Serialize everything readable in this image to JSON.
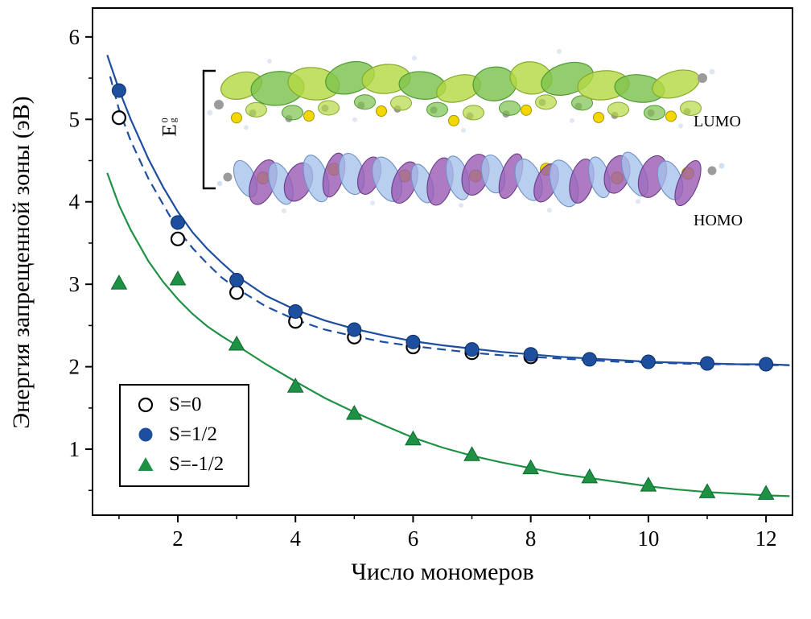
{
  "chart_data": {
    "type": "scatter",
    "title": "",
    "xlabel": "Число мономеров",
    "ylabel": "Энергия запрещенной зоны (эВ)",
    "xlim": [
      0.55,
      12.45
    ],
    "ylim": [
      0.2,
      6.35
    ],
    "xticks_major": [
      2,
      4,
      6,
      8,
      10,
      12
    ],
    "xticks_minor": [
      1,
      3,
      5,
      7,
      9,
      11
    ],
    "yticks_major": [
      1,
      2,
      3,
      4,
      5,
      6
    ],
    "yticks_minor": [
      0.5,
      1.5,
      2.5,
      3.5,
      4.5,
      5.5
    ],
    "grid": false,
    "legend_position": "lower-left",
    "series": [
      {
        "name": "S0",
        "label": "S=0",
        "marker": "circle-open",
        "color": "#000000",
        "line": "dashed",
        "line_color": "#1d4f9e",
        "x": [
          1,
          2,
          3,
          4,
          5,
          6,
          7,
          8
        ],
        "y": [
          5.02,
          3.55,
          2.9,
          2.55,
          2.36,
          2.24,
          2.17,
          2.12
        ],
        "fit": [
          [
            0.85,
            5.52
          ],
          [
            1,
            5.12
          ],
          [
            1.2,
            4.74
          ],
          [
            1.5,
            4.28
          ],
          [
            1.75,
            3.97
          ],
          [
            2,
            3.66
          ],
          [
            2.25,
            3.44
          ],
          [
            2.5,
            3.25
          ],
          [
            2.75,
            3.08
          ],
          [
            3,
            2.95
          ],
          [
            3.5,
            2.73
          ],
          [
            4,
            2.57
          ],
          [
            4.5,
            2.45
          ],
          [
            5,
            2.37
          ],
          [
            5.5,
            2.3
          ],
          [
            6,
            2.25
          ],
          [
            6.5,
            2.21
          ],
          [
            7,
            2.17
          ],
          [
            7.5,
            2.14
          ],
          [
            8,
            2.12
          ],
          [
            8.5,
            2.1
          ],
          [
            9,
            2.08
          ],
          [
            9.5,
            2.06
          ],
          [
            10,
            2.05
          ],
          [
            10.5,
            2.04
          ],
          [
            11,
            2.03
          ],
          [
            11.5,
            2.03
          ],
          [
            12,
            2.02
          ],
          [
            12.4,
            2.02
          ]
        ]
      },
      {
        "name": "S12",
        "label": "S=1/2",
        "marker": "circle-filled",
        "color": "#1d4f9e",
        "line": "solid",
        "line_color": "#1d4f9e",
        "x": [
          1,
          2,
          3,
          4,
          5,
          6,
          7,
          8,
          9,
          10,
          11,
          12
        ],
        "y": [
          5.35,
          3.75,
          3.05,
          2.67,
          2.45,
          2.3,
          2.21,
          2.15,
          2.09,
          2.06,
          2.04,
          2.03
        ],
        "fit": [
          [
            0.8,
            5.78
          ],
          [
            1,
            5.36
          ],
          [
            1.2,
            5.0
          ],
          [
            1.5,
            4.52
          ],
          [
            1.75,
            4.18
          ],
          [
            2,
            3.88
          ],
          [
            2.25,
            3.63
          ],
          [
            2.5,
            3.43
          ],
          [
            2.75,
            3.26
          ],
          [
            3,
            3.1
          ],
          [
            3.5,
            2.86
          ],
          [
            4,
            2.69
          ],
          [
            4.5,
            2.56
          ],
          [
            5,
            2.46
          ],
          [
            5.5,
            2.38
          ],
          [
            6,
            2.31
          ],
          [
            6.5,
            2.26
          ],
          [
            7,
            2.22
          ],
          [
            7.5,
            2.18
          ],
          [
            8,
            2.15
          ],
          [
            8.5,
            2.12
          ],
          [
            9,
            2.1
          ],
          [
            9.5,
            2.08
          ],
          [
            10,
            2.06
          ],
          [
            10.5,
            2.05
          ],
          [
            11,
            2.04
          ],
          [
            11.5,
            2.03
          ],
          [
            12,
            2.03
          ],
          [
            12.4,
            2.02
          ]
        ]
      },
      {
        "name": "Sm12",
        "label": "S=-1/2",
        "marker": "triangle-filled",
        "color": "#1f9145",
        "line": "solid",
        "line_color": "#1f9145",
        "x": [
          1,
          2,
          3,
          4,
          5,
          6,
          7,
          8,
          9,
          10,
          11,
          12
        ],
        "y": [
          3.01,
          3.06,
          2.27,
          1.76,
          1.43,
          1.12,
          0.93,
          0.77,
          0.66,
          0.56,
          0.48,
          0.46
        ],
        "fit": [
          [
            0.8,
            4.35
          ],
          [
            1,
            3.96
          ],
          [
            1.2,
            3.66
          ],
          [
            1.5,
            3.28
          ],
          [
            1.75,
            3.03
          ],
          [
            2,
            2.82
          ],
          [
            2.25,
            2.64
          ],
          [
            2.5,
            2.49
          ],
          [
            2.75,
            2.37
          ],
          [
            3,
            2.26
          ],
          [
            3.5,
            2.03
          ],
          [
            4,
            1.82
          ],
          [
            4.5,
            1.62
          ],
          [
            5,
            1.45
          ],
          [
            5.5,
            1.29
          ],
          [
            6,
            1.14
          ],
          [
            6.5,
            1.02
          ],
          [
            7,
            0.92
          ],
          [
            7.5,
            0.84
          ],
          [
            8,
            0.77
          ],
          [
            8.5,
            0.7
          ],
          [
            9,
            0.65
          ],
          [
            9.5,
            0.6
          ],
          [
            10,
            0.55
          ],
          [
            10.5,
            0.51
          ],
          [
            11,
            0.48
          ],
          [
            11.5,
            0.46
          ],
          [
            12,
            0.44
          ],
          [
            12.4,
            0.43
          ]
        ]
      }
    ],
    "inset": {
      "lumo_label": "LUMO",
      "homo_label": "HOMO",
      "bracket_label_main": "E",
      "bracket_label_sup": "0",
      "bracket_label_sub": "g"
    }
  },
  "colors": {
    "axis": "#000000",
    "background": "#ffffff",
    "blue": "#1d4f9e",
    "green": "#1f9145",
    "lumo_green": "#7cc24d",
    "homo_purple": "#9a5ab4",
    "homo_blue": "#a6c3ec",
    "sulfur_yellow": "#f2d800"
  }
}
